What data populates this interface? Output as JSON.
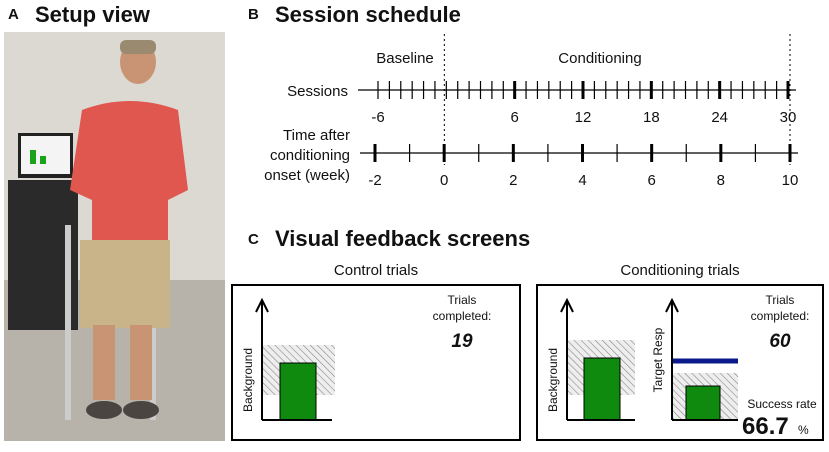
{
  "panels": {
    "a": {
      "letter": "A",
      "title": "Setup view"
    },
    "b": {
      "letter": "B",
      "title": "Session schedule",
      "phase_labels": [
        "Baseline",
        "Conditioning"
      ],
      "sessions_label": "Sessions",
      "session_labels": [
        -6,
        6,
        12,
        18,
        24,
        30
      ],
      "time_label": [
        "Time after",
        "conditioning",
        "onset (week)"
      ],
      "week_labels": [
        -2,
        0,
        2,
        4,
        6,
        8,
        10
      ]
    },
    "c": {
      "letter": "C",
      "title": "Visual feedback screens",
      "control": {
        "title": "Control trials",
        "axis_label": "Background",
        "trials_label": [
          "Trials",
          "completed:"
        ],
        "trials": 19
      },
      "conditioning": {
        "title": "Conditioning trials",
        "axis_label": "Background",
        "axis_label_2": "Target Resp",
        "trials_label": [
          "Trials",
          "completed:"
        ],
        "trials": 60,
        "success_label": "Success rate",
        "success": 66.7,
        "success_unit": "%"
      }
    }
  }
}
